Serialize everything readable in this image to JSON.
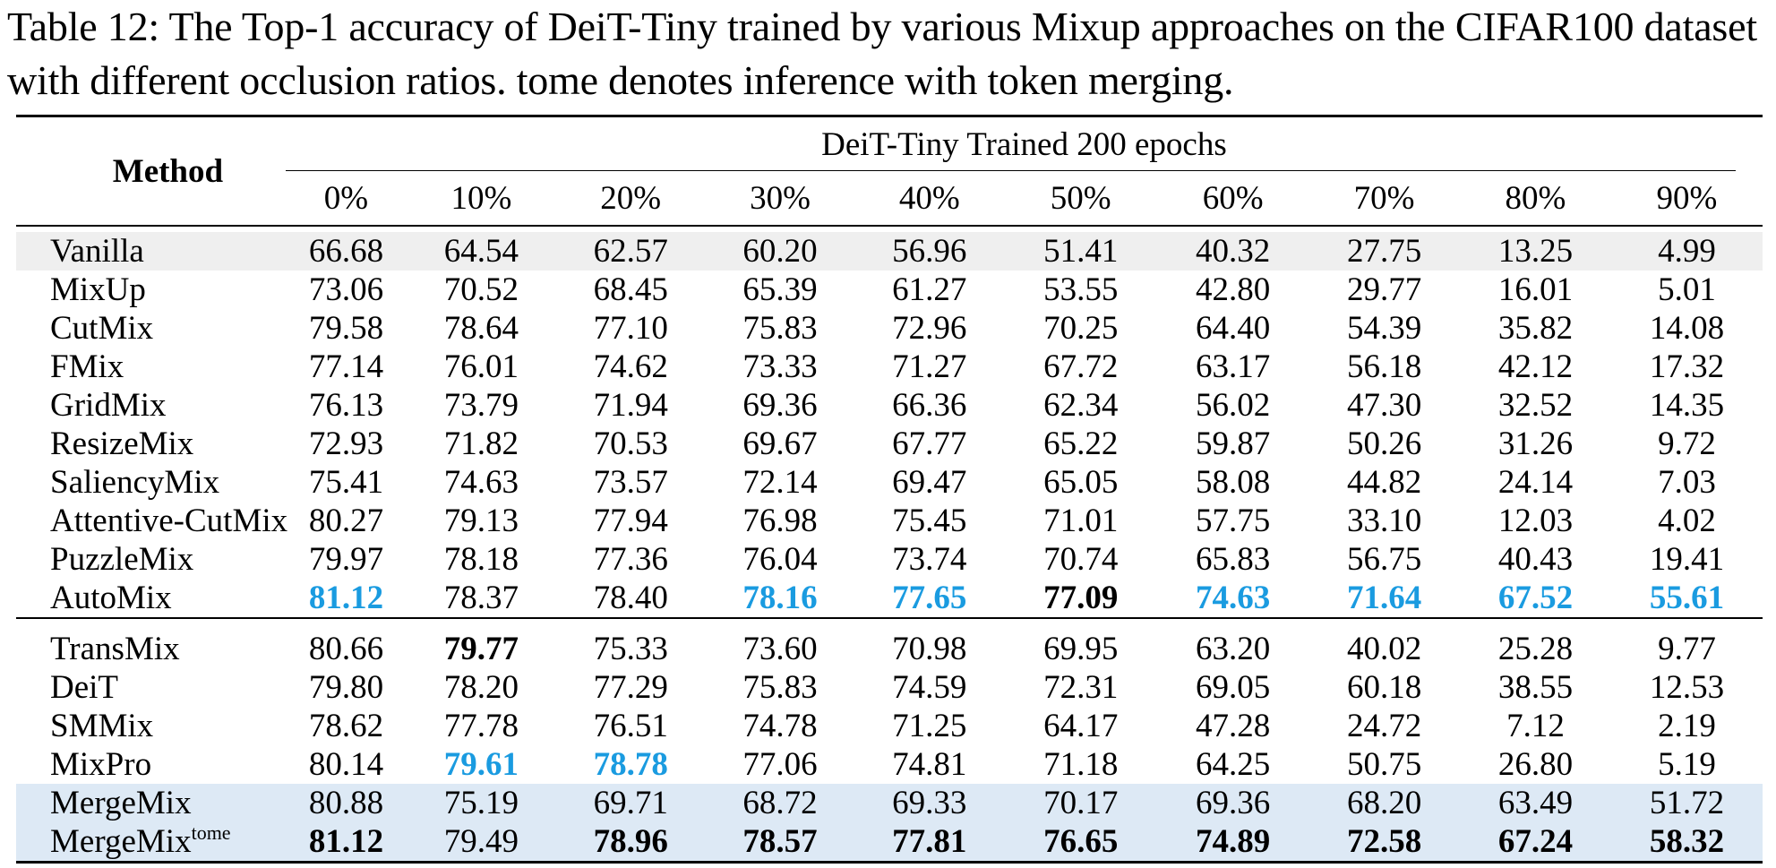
{
  "caption": "Table 12: The Top-1 accuracy of DeiT-Tiny trained by various Mixup approaches on the CIFAR100 dataset with different occlusion ratios. tome denotes inference with token merging.",
  "header": {
    "method": "Method",
    "group": "DeiT-Tiny Trained 200 epochs",
    "columns": [
      "0%",
      "10%",
      "20%",
      "30%",
      "40%",
      "50%",
      "60%",
      "70%",
      "80%",
      "90%"
    ]
  },
  "group1": [
    {
      "method": "Vanilla",
      "values": [
        "66.68",
        "64.54",
        "62.57",
        "60.20",
        "56.96",
        "51.41",
        "40.32",
        "27.75",
        "13.25",
        "4.99"
      ]
    },
    {
      "method": "MixUp",
      "values": [
        "73.06",
        "70.52",
        "68.45",
        "65.39",
        "61.27",
        "53.55",
        "42.80",
        "29.77",
        "16.01",
        "5.01"
      ]
    },
    {
      "method": "CutMix",
      "values": [
        "79.58",
        "78.64",
        "77.10",
        "75.83",
        "72.96",
        "70.25",
        "64.40",
        "54.39",
        "35.82",
        "14.08"
      ]
    },
    {
      "method": "FMix",
      "values": [
        "77.14",
        "76.01",
        "74.62",
        "73.33",
        "71.27",
        "67.72",
        "63.17",
        "56.18",
        "42.12",
        "17.32"
      ]
    },
    {
      "method": "GridMix",
      "values": [
        "76.13",
        "73.79",
        "71.94",
        "69.36",
        "66.36",
        "62.34",
        "56.02",
        "47.30",
        "32.52",
        "14.35"
      ]
    },
    {
      "method": "ResizeMix",
      "values": [
        "72.93",
        "71.82",
        "70.53",
        "69.67",
        "67.77",
        "65.22",
        "59.87",
        "50.26",
        "31.26",
        "9.72"
      ]
    },
    {
      "method": "SaliencyMix",
      "values": [
        "75.41",
        "74.63",
        "73.57",
        "72.14",
        "69.47",
        "65.05",
        "58.08",
        "44.82",
        "24.14",
        "7.03"
      ]
    },
    {
      "method": "Attentive-CutMix",
      "values": [
        "80.27",
        "79.13",
        "77.94",
        "76.98",
        "75.45",
        "71.01",
        "57.75",
        "33.10",
        "12.03",
        "4.02"
      ]
    },
    {
      "method": "PuzzleMix",
      "values": [
        "79.97",
        "78.18",
        "77.36",
        "76.04",
        "73.74",
        "70.74",
        "65.83",
        "56.75",
        "40.43",
        "19.41"
      ]
    },
    {
      "method": "AutoMix",
      "values": [
        "81.12",
        "78.37",
        "78.40",
        "78.16",
        "77.65",
        "77.09",
        "74.63",
        "71.64",
        "67.52",
        "55.61"
      ]
    }
  ],
  "group2": [
    {
      "method": "TransMix",
      "values": [
        "80.66",
        "79.77",
        "75.33",
        "73.60",
        "70.98",
        "69.95",
        "63.20",
        "40.02",
        "25.28",
        "9.77"
      ]
    },
    {
      "method": "DeiT",
      "values": [
        "79.80",
        "78.20",
        "77.29",
        "75.83",
        "74.59",
        "72.31",
        "69.05",
        "60.18",
        "38.55",
        "12.53"
      ]
    },
    {
      "method": "SMMix",
      "values": [
        "78.62",
        "77.78",
        "76.51",
        "74.78",
        "71.25",
        "64.17",
        "47.28",
        "24.72",
        "7.12",
        "2.19"
      ]
    },
    {
      "method": "MixPro",
      "values": [
        "80.14",
        "79.61",
        "78.78",
        "77.06",
        "74.81",
        "71.18",
        "64.25",
        "50.75",
        "26.80",
        "5.19"
      ]
    },
    {
      "method": "MergeMix",
      "values": [
        "80.88",
        "75.19",
        "69.71",
        "68.72",
        "69.33",
        "70.17",
        "69.36",
        "68.20",
        "63.49",
        "51.72"
      ]
    },
    {
      "method": "MergeMix",
      "method_sup": "tome",
      "values": [
        "81.12",
        "79.49",
        "78.96",
        "78.57",
        "77.81",
        "76.65",
        "74.89",
        "72.58",
        "67.24",
        "58.32"
      ]
    }
  ],
  "colors": {
    "best": "#000000",
    "second": "#1a9be0",
    "vanilla_row": "#efefef",
    "mergemix_rows": "#dde9f5"
  }
}
